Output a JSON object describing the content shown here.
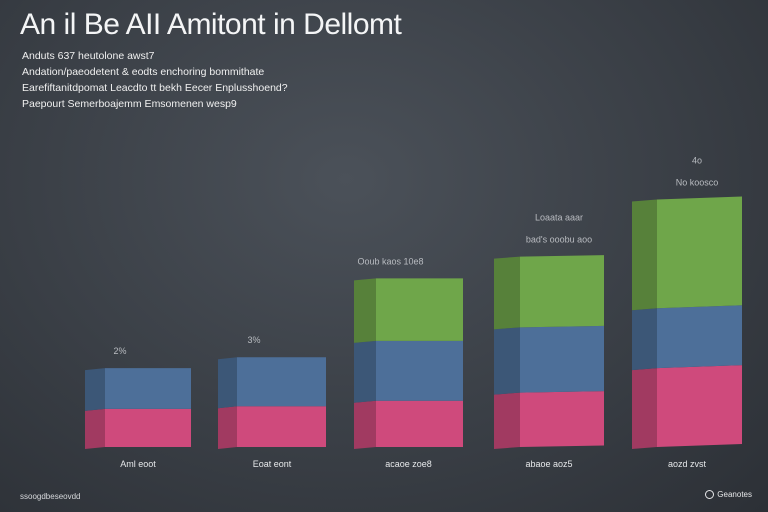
{
  "header": {
    "title": "An il  Be  AII  Amitont in Dellomt",
    "subtitles": [
      "Anduts 637 heutolone awst7",
      "Andation/paeodetent & eodts  enchoring  bommithate",
      "Earefiftanitdpomat Leacdto  tt  bekh Eecer Enplusshoend?",
      "Paepourt Semerboajemm Emsomenen wesp9"
    ]
  },
  "chart_data": {
    "type": "bar",
    "stacked": true,
    "title": "An il  Be  AII  Amitont in Dellomt",
    "xlabel": "",
    "ylabel": "",
    "ylim": [
      0,
      100
    ],
    "grid": false,
    "categories": [
      "Aml eoot",
      "Eoat eont",
      "acaoe zoe8",
      "abaoe aoz5",
      "aozd zvst"
    ],
    "top_labels": [
      [
        "2%"
      ],
      [
        "3%"
      ],
      [
        "Ooub  kaos 10e8"
      ],
      [
        "Loaata  aaar",
        "bad's ooobu aoo"
      ],
      [
        "4o",
        "No  koosco"
      ]
    ],
    "series": [
      {
        "name": "Pink",
        "color": "#cf4a7c",
        "values": [
          14,
          15,
          17,
          20,
          29
        ]
      },
      {
        "name": "Blue",
        "color": "#4d6f99",
        "values": [
          15,
          18,
          22,
          24,
          22
        ]
      },
      {
        "name": "Green",
        "color": "#6fa64a",
        "values": [
          0,
          0,
          23,
          26,
          40
        ]
      }
    ]
  },
  "footer": {
    "source": "ssoogdbeseovdd",
    "brand": "Geanotes"
  },
  "colors": {
    "pink": "#cf4a7c",
    "blue": "#4d6f99",
    "green": "#6fa64a",
    "background": "#3a3f46"
  }
}
